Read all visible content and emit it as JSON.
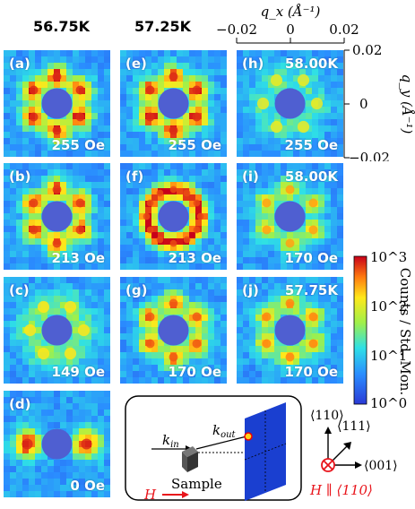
{
  "column_headers": [
    "56.75K",
    "57.25K"
  ],
  "panels": [
    {
      "id": "a",
      "label": "(a)",
      "field": "255 Oe",
      "temp": "",
      "pattern": "ring6",
      "strength": 1.0
    },
    {
      "id": "b",
      "label": "(b)",
      "field": "213 Oe",
      "temp": "",
      "pattern": "ring6",
      "strength": 0.95
    },
    {
      "id": "c",
      "label": "(c)",
      "field": "149 Oe",
      "temp": "",
      "pattern": "faint",
      "strength": 0.35
    },
    {
      "id": "d",
      "label": "(d)",
      "field": "0 Oe",
      "temp": "",
      "pattern": "two",
      "strength": 1.0
    },
    {
      "id": "e",
      "label": "(e)",
      "field": "255 Oe",
      "temp": "",
      "pattern": "ring6",
      "strength": 1.0
    },
    {
      "id": "f",
      "label": "(f)",
      "field": "213 Oe",
      "temp": "",
      "pattern": "ring12",
      "strength": 0.9
    },
    {
      "id": "g",
      "label": "(g)",
      "field": "170 Oe",
      "temp": "",
      "pattern": "ring6",
      "strength": 0.85
    },
    {
      "id": "h",
      "label": "(h)",
      "field": "255 Oe",
      "temp": "58.00K",
      "pattern": "faint",
      "strength": 0.25
    },
    {
      "id": "i",
      "label": "(i)",
      "field": "170 Oe",
      "temp": "58.00K",
      "pattern": "ring6",
      "strength": 0.6
    },
    {
      "id": "j",
      "label": "(j)",
      "field": "170 Oe",
      "temp": "57.75K",
      "pattern": "ring6",
      "strength": 0.7
    }
  ],
  "chart_data": {
    "type": "heatmap",
    "xlabel": "q_x (Å⁻¹)",
    "ylabel": "q_y (Å⁻¹)",
    "xlim": [
      -0.02,
      0.02
    ],
    "ylim": [
      -0.02,
      0.02
    ],
    "x_ticks": [
      "−0.02",
      "0",
      "0.02"
    ],
    "y_ticks": [
      "0.02",
      "0",
      "−0.02"
    ],
    "colorbar": {
      "label": "Counts / Std. Mon.",
      "scale": "log",
      "ticks": [
        "10^0",
        "10^1",
        "10^2",
        "10^3"
      ],
      "range": [
        1,
        1000
      ]
    }
  },
  "schematic": {
    "k_in": "k",
    "k_in_sub": "in",
    "k_out": "k",
    "k_out_sub": "out",
    "sample": "Sample",
    "field_label": "H",
    "accent": "#e8141b",
    "detector_color": "#1a3fd0"
  },
  "axes_diagram": {
    "up": "⟨110⟩",
    "diag": "⟨111⟩",
    "right": "⟨001⟩",
    "field_relation": "H ∥ ⟨110⟩"
  }
}
